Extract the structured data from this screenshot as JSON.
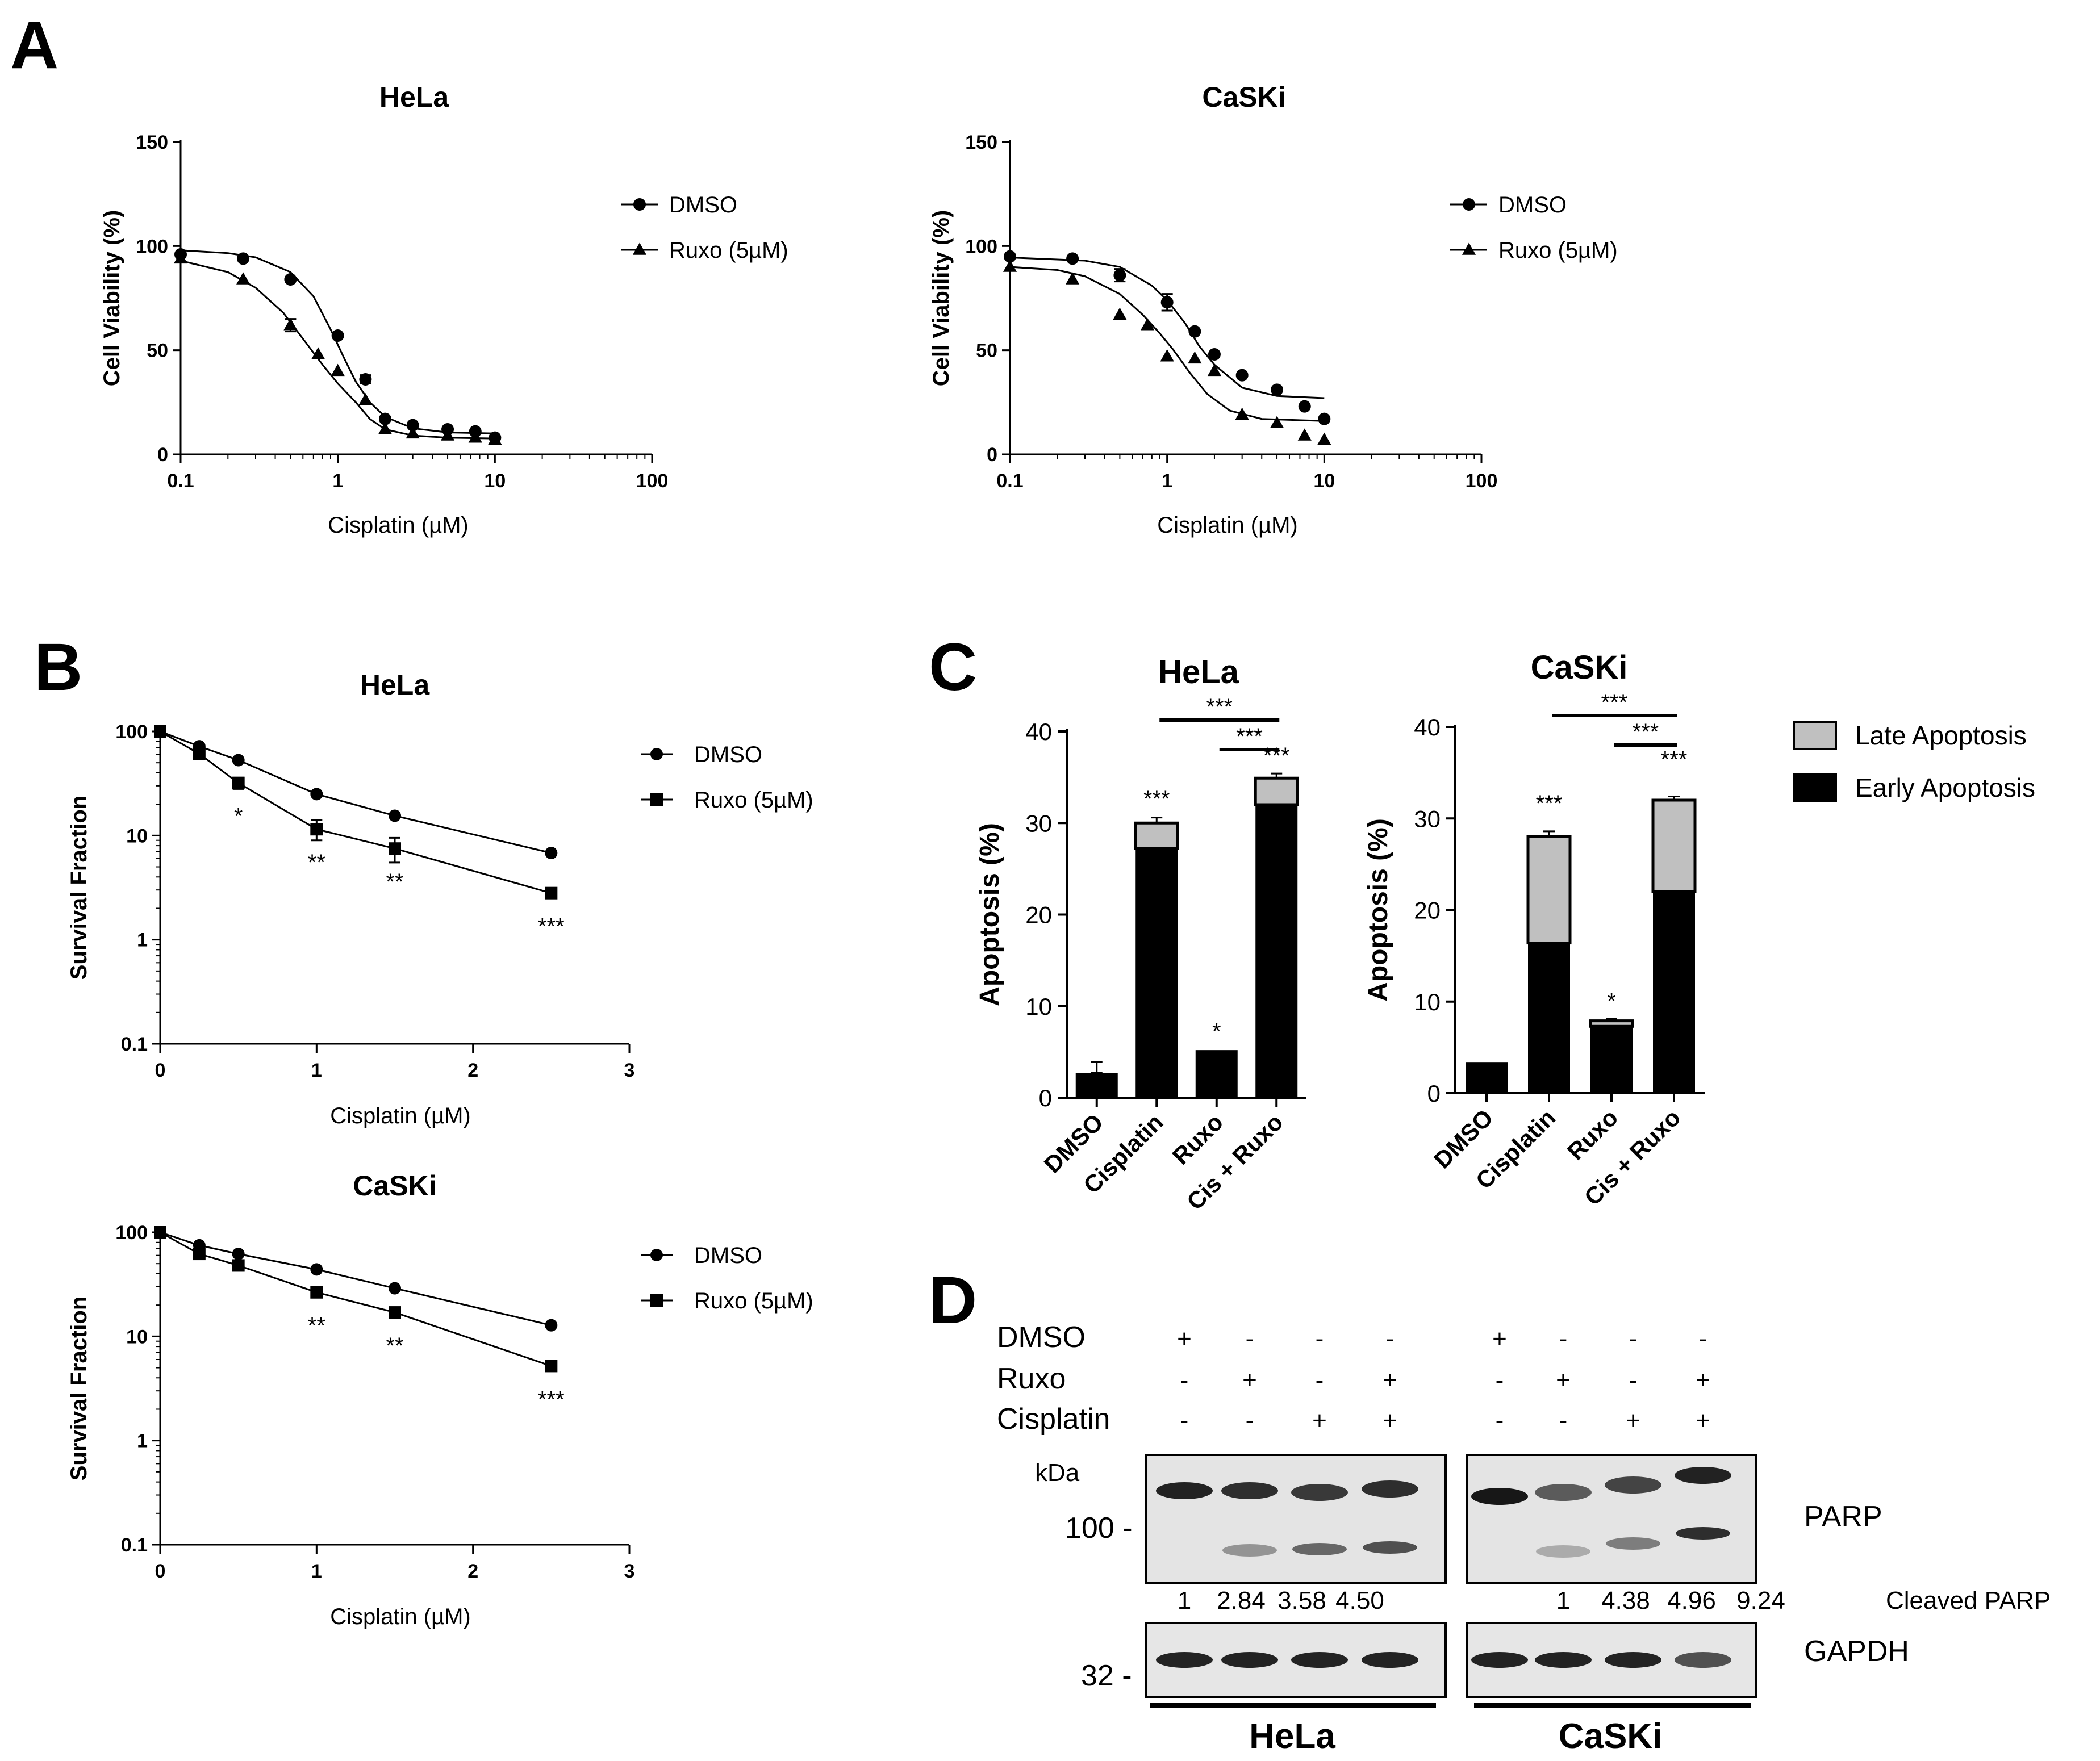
{
  "panels": {
    "A": "A",
    "B": "B",
    "C": "C",
    "D": "D"
  },
  "panel_a": {
    "ylabel": "Cell Viability (%)",
    "xlabel": "Cisplatin (µM)",
    "yticks": [
      "0",
      "50",
      "100",
      "150"
    ],
    "xticks": [
      "0.1",
      "1",
      "10",
      "100"
    ],
    "legend": [
      "DMSO",
      "Ruxo (5µM)"
    ]
  },
  "panel_b": {
    "ylabel": "Survival Fraction",
    "xlabel": "Cisplatin (µM)",
    "yticks": [
      "0.1",
      "1",
      "10",
      "100"
    ],
    "xticks": [
      "0",
      "1",
      "2",
      "3"
    ],
    "legend": [
      "DMSO",
      "Ruxo (5µM)"
    ]
  },
  "panel_c": {
    "ylabel": "Apoptosis (%)",
    "yticks": [
      "0",
      "10",
      "20",
      "30",
      "40"
    ],
    "categories": [
      "DMSO",
      "Cisplatin",
      "Ruxo",
      "Cis + Ruxo"
    ],
    "legend": [
      "Late Apoptosis",
      "Early Apoptosis"
    ],
    "colors": {
      "late": "#c0c0c0",
      "early": "#000000"
    }
  },
  "panel_d": {
    "row_labels": [
      "DMSO",
      "Ruxo",
      "Cisplatin"
    ],
    "lanes": [
      [
        "+",
        "-",
        "-",
        "-",
        "+",
        "-",
        "-",
        "-"
      ],
      [
        "-",
        "+",
        "-",
        "+",
        "-",
        "+",
        "-",
        "+"
      ],
      [
        "-",
        "-",
        "+",
        "+",
        "-",
        "-",
        "+",
        "+"
      ]
    ],
    "kda_label": "kDa",
    "markers": [
      "100 -",
      "32 -"
    ],
    "proteins": [
      "PARP",
      "GAPDH"
    ],
    "quant_label": "Cleaved PARP",
    "quant_values": [
      "1",
      "2.84",
      "3.58",
      "4.50",
      "1",
      "4.38",
      "4.96",
      "9.24"
    ],
    "cells": [
      "HeLa",
      "CaSKi"
    ]
  },
  "chart_data": [
    {
      "type": "scatter",
      "title": "HeLa",
      "xlabel": "Cisplatin (µM)",
      "ylabel": "Cell Viability (%)",
      "xscale": "log",
      "xlim": [
        0.1,
        100
      ],
      "ylim": [
        0,
        150
      ],
      "legend_position": "top-right",
      "series": [
        {
          "name": "DMSO",
          "marker": "circle",
          "x": [
            0.1,
            0.25,
            0.5,
            1,
            1.5,
            2,
            3,
            5,
            7.5,
            10
          ],
          "y": [
            96,
            94,
            84,
            57,
            36,
            17,
            14,
            12,
            11,
            8
          ],
          "err": [
            1,
            1,
            1,
            1,
            2,
            1,
            1,
            1,
            1,
            1
          ],
          "fit": [
            [
              0.1,
              98
            ],
            [
              0.2,
              96.6
            ],
            [
              0.3,
              94.6
            ],
            [
              0.5,
              87.5
            ],
            [
              0.7,
              75.9
            ],
            [
              0.9,
              60
            ],
            [
              1.1,
              46
            ],
            [
              1.3,
              35
            ],
            [
              1.6,
              25
            ],
            [
              2,
              18
            ],
            [
              3,
              12.5
            ],
            [
              5,
              10.5
            ],
            [
              10,
              10
            ]
          ]
        },
        {
          "name": "Ruxo (5µM)",
          "marker": "triangle",
          "x": [
            0.1,
            0.25,
            0.5,
            0.75,
            1,
            1.5,
            2,
            3,
            5,
            7.5,
            10
          ],
          "y": [
            94,
            84,
            62,
            48,
            40,
            26,
            12,
            10,
            9,
            8,
            7
          ],
          "err": [
            1,
            1,
            3,
            1,
            1,
            1,
            1,
            1,
            1,
            1,
            1
          ],
          "fit": [
            [
              0.1,
              93
            ],
            [
              0.2,
              87.5
            ],
            [
              0.3,
              80
            ],
            [
              0.45,
              68
            ],
            [
              0.6,
              55.5
            ],
            [
              0.8,
              43
            ],
            [
              1,
              34
            ],
            [
              1.3,
              25
            ],
            [
              1.6,
              17
            ],
            [
              2,
              12
            ],
            [
              3,
              9
            ],
            [
              5,
              8
            ],
            [
              10,
              7.6
            ]
          ]
        }
      ]
    },
    {
      "type": "scatter",
      "title": "CaSKi",
      "xlabel": "Cisplatin (µM)",
      "ylabel": "Cell Viability (%)",
      "xscale": "log",
      "xlim": [
        0.1,
        100
      ],
      "ylim": [
        0,
        150
      ],
      "legend_position": "top-right",
      "series": [
        {
          "name": "DMSO",
          "marker": "circle",
          "x": [
            0.1,
            0.25,
            0.5,
            1,
            1.5,
            2,
            3,
            5,
            7.5,
            10
          ],
          "y": [
            95,
            94,
            86,
            73,
            59,
            48,
            38,
            31,
            23,
            17
          ],
          "err": [
            1,
            1,
            3,
            4,
            1,
            1,
            1,
            1,
            1,
            1
          ],
          "fit": [
            [
              0.1,
              94.5
            ],
            [
              0.3,
              93
            ],
            [
              0.5,
              90
            ],
            [
              0.8,
              81
            ],
            [
              1,
              74
            ],
            [
              1.3,
              63
            ],
            [
              1.6,
              52
            ],
            [
              2,
              43
            ],
            [
              3,
              32
            ],
            [
              5,
              28
            ],
            [
              10,
              27
            ]
          ]
        },
        {
          "name": "Ruxo (5µM)",
          "marker": "triangle",
          "x": [
            0.1,
            0.25,
            0.5,
            0.75,
            1,
            1.5,
            2,
            3,
            5,
            7.5,
            10
          ],
          "y": [
            90,
            84,
            67,
            62,
            47,
            46,
            40,
            19,
            15,
            9,
            7
          ],
          "err": [
            1,
            1,
            1,
            1,
            1,
            1,
            1,
            1,
            1,
            1,
            1
          ],
          "fit": [
            [
              0.1,
              90
            ],
            [
              0.2,
              88.5
            ],
            [
              0.3,
              85.5
            ],
            [
              0.5,
              77
            ],
            [
              0.7,
              67
            ],
            [
              0.9,
              58
            ],
            [
              1.1,
              50
            ],
            [
              1.4,
              39
            ],
            [
              1.8,
              29
            ],
            [
              2.5,
              21
            ],
            [
              4,
              17
            ],
            [
              10,
              16
            ]
          ]
        }
      ]
    },
    {
      "type": "line",
      "title": "HeLa",
      "xlabel": "Cisplatin (µM)",
      "ylabel": "Survival Fraction",
      "yscale": "log",
      "xlim": [
        0,
        3
      ],
      "ylim": [
        0.1,
        100
      ],
      "legend_position": "top-right",
      "series": [
        {
          "name": "DMSO",
          "marker": "circle",
          "x": [
            0,
            0.25,
            0.5,
            1,
            1.5,
            2.5
          ],
          "y": [
            100,
            72,
            53,
            25,
            15.5,
            6.8
          ],
          "err": [
            0,
            3,
            2,
            1,
            1,
            0.4
          ]
        },
        {
          "name": "Ruxo (5µM)",
          "marker": "square",
          "x": [
            0,
            0.25,
            0.5,
            1,
            1.5,
            2.5
          ],
          "y": [
            100,
            61,
            32,
            11.5,
            7.5,
            2.8
          ],
          "err": [
            0,
            3,
            4,
            2.5,
            2,
            0.5
          ]
        }
      ],
      "annotations": [
        {
          "x": 0.5,
          "text": "*"
        },
        {
          "x": 1,
          "text": "**"
        },
        {
          "x": 1.5,
          "text": "**"
        },
        {
          "x": 2.5,
          "text": "***"
        }
      ]
    },
    {
      "type": "line",
      "title": "CaSKi",
      "xlabel": "Cisplatin (µM)",
      "ylabel": "Survival Fraction",
      "yscale": "log",
      "xlim": [
        0,
        3
      ],
      "ylim": [
        0.1,
        100
      ],
      "legend_position": "top-right",
      "series": [
        {
          "name": "DMSO",
          "marker": "circle",
          "x": [
            0,
            0.25,
            0.5,
            1,
            1.5,
            2.5
          ],
          "y": [
            100,
            75,
            62,
            44,
            29,
            12.8
          ],
          "err": [
            0,
            2,
            2,
            1,
            1,
            0.5
          ]
        },
        {
          "name": "Ruxo (5µM)",
          "marker": "square",
          "x": [
            0,
            0.25,
            0.5,
            1,
            1.5,
            2.5
          ],
          "y": [
            100,
            62,
            48,
            26.5,
            17,
            5.2
          ],
          "err": [
            0,
            3,
            3,
            1.5,
            1,
            0.4
          ]
        }
      ],
      "annotations": [
        {
          "x": 1,
          "text": "**"
        },
        {
          "x": 1.5,
          "text": "**"
        },
        {
          "x": 2.5,
          "text": "***"
        }
      ]
    },
    {
      "type": "bar",
      "stacked": true,
      "title": "HeLa",
      "ylabel": "Apoptosis (%)",
      "ylim": [
        0,
        40
      ],
      "categories": [
        "DMSO",
        "Cisplatin",
        "Ruxo",
        "Cis + Ruxo"
      ],
      "legend_position": "right",
      "series": [
        {
          "name": "Early Apoptosis",
          "values": [
            2.7,
            27.2,
            5.2,
            32
          ],
          "err": [
            1.2,
            0.7,
            0.1,
            0.5
          ]
        },
        {
          "name": "Late Apoptosis",
          "values": [
            0,
            2.8,
            0,
            2.9
          ],
          "err": [
            0,
            0.6,
            0,
            0.5
          ]
        }
      ],
      "bar_labels": [
        "",
        "***",
        "*",
        "***"
      ],
      "comparisons": [
        {
          "from": 1,
          "to": 3,
          "text": "***"
        },
        {
          "from": 2,
          "to": 3,
          "text": "***"
        }
      ]
    },
    {
      "type": "bar",
      "stacked": true,
      "title": "CaSKi",
      "ylabel": "Apoptosis (%)",
      "ylim": [
        0,
        40
      ],
      "categories": [
        "DMSO",
        "Cisplatin",
        "Ruxo",
        "Cis + Ruxo"
      ],
      "legend_position": "right",
      "series": [
        {
          "name": "Early Apoptosis",
          "values": [
            3.4,
            16.4,
            7.3,
            22
          ],
          "err": [
            0.1,
            1.7,
            0.2,
            2.5
          ]
        },
        {
          "name": "Late Apoptosis",
          "values": [
            0,
            11.6,
            0.6,
            10
          ],
          "err": [
            0,
            0.6,
            0.2,
            0.4
          ]
        }
      ],
      "bar_labels": [
        "",
        "***",
        "*",
        "***"
      ],
      "comparisons": [
        {
          "from": 1,
          "to": 3,
          "text": "***"
        },
        {
          "from": 2,
          "to": 3,
          "text": "***"
        }
      ]
    }
  ]
}
